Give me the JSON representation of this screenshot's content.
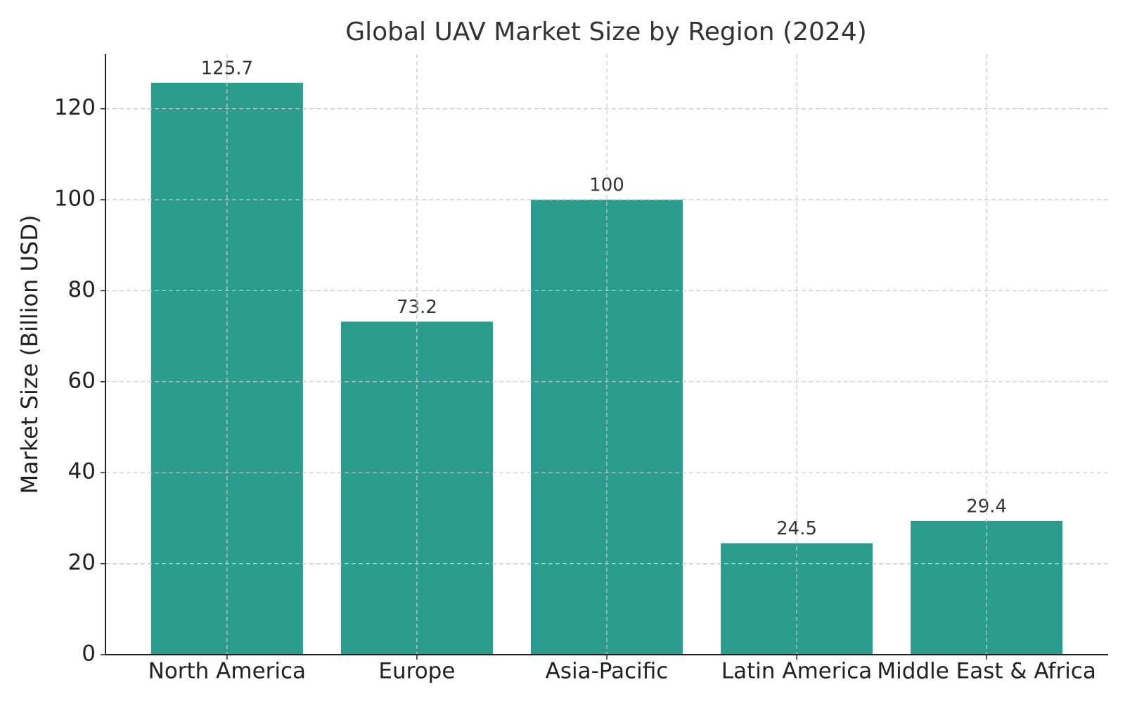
{
  "chart_data": {
    "type": "bar",
    "title": "Global UAV Market Size by Region (2024)",
    "y_label": "Market Size (Billion USD)",
    "categories": [
      "North America",
      "Europe",
      "Asia-Pacific",
      "Latin America",
      "Middle East & Africa"
    ],
    "values": [
      125.7,
      73.2,
      100,
      24.5,
      29.4
    ],
    "color": "#2a9d8f",
    "ylim": [
      0,
      132
    ],
    "yticks": [
      0,
      20,
      40,
      60,
      80,
      100,
      120
    ],
    "grid": true
  }
}
